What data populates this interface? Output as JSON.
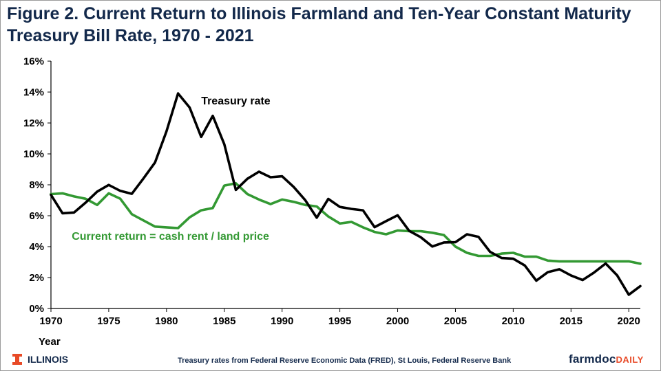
{
  "header": {
    "title_line1": "Figure 2.  Current Return to Illinois Farmland and Ten-Year Constant Maturity",
    "title_line2": "Treasury Bill Rate, 1970 - 2021"
  },
  "footer": {
    "logo_text": "ILLINOIS",
    "source_note": "Treasury rates from Federal Reserve Economic Data (FRED), St Louis, Federal Reserve Bank",
    "brand_main": "farmdoc",
    "brand_accent": "DAILY"
  },
  "colors": {
    "treasury": "#000000",
    "current_return": "#339933",
    "title": "#13294b",
    "brand_accent": "#e84a27"
  },
  "chart_data": {
    "type": "line",
    "xlabel": "Year",
    "ylabel": "",
    "xlim": [
      1970,
      2021
    ],
    "ylim": [
      0,
      16
    ],
    "x_ticks": [
      1970,
      1975,
      1980,
      1985,
      1990,
      1995,
      2000,
      2005,
      2010,
      2015,
      2020
    ],
    "x_tick_labels": [
      "1970",
      "1975",
      "1980",
      "1985",
      "1990",
      "1995",
      "2000",
      "2005",
      "2010",
      "2015",
      "2020"
    ],
    "y_ticks": [
      0,
      2,
      4,
      6,
      8,
      10,
      12,
      14,
      16
    ],
    "y_tick_labels": [
      "0%",
      "2%",
      "4%",
      "6%",
      "8%",
      "10%",
      "12%",
      "14%",
      "16%"
    ],
    "grid": false,
    "x": [
      1970,
      1971,
      1972,
      1973,
      1974,
      1975,
      1976,
      1977,
      1978,
      1979,
      1980,
      1981,
      1982,
      1983,
      1984,
      1985,
      1986,
      1987,
      1988,
      1989,
      1990,
      1991,
      1992,
      1993,
      1994,
      1995,
      1996,
      1997,
      1998,
      1999,
      2000,
      2001,
      2002,
      2003,
      2004,
      2005,
      2006,
      2007,
      2008,
      2009,
      2010,
      2011,
      2012,
      2013,
      2014,
      2015,
      2016,
      2017,
      2018,
      2019,
      2020,
      2021
    ],
    "series": [
      {
        "name": "Treasury rate",
        "values": [
          7.35,
          6.16,
          6.21,
          6.85,
          7.56,
          7.99,
          7.61,
          7.42,
          8.41,
          9.44,
          11.46,
          13.91,
          13.0,
          11.1,
          12.46,
          10.62,
          7.67,
          8.39,
          8.85,
          8.49,
          8.55,
          7.86,
          7.01,
          5.87,
          7.09,
          6.57,
          6.44,
          6.35,
          5.26,
          5.65,
          6.03,
          5.02,
          4.61,
          4.01,
          4.27,
          4.29,
          4.8,
          4.63,
          3.66,
          3.26,
          3.22,
          2.78,
          1.8,
          2.35,
          2.54,
          2.14,
          1.84,
          2.33,
          2.91,
          2.14,
          0.89,
          1.45
        ]
      },
      {
        "name": "Current return = cash rent / land price",
        "values": [
          7.4,
          7.45,
          7.25,
          7.1,
          6.7,
          7.45,
          7.1,
          6.1,
          5.7,
          5.3,
          5.25,
          5.2,
          5.9,
          6.35,
          6.5,
          7.95,
          8.1,
          7.4,
          7.05,
          6.75,
          7.05,
          6.9,
          6.7,
          6.6,
          5.95,
          5.5,
          5.6,
          5.25,
          4.95,
          4.8,
          5.05,
          5.0,
          5.0,
          4.9,
          4.75,
          4.0,
          3.6,
          3.4,
          3.4,
          3.55,
          3.6,
          3.35,
          3.35,
          3.1,
          3.05,
          3.05,
          3.05,
          3.05,
          3.05,
          3.05,
          3.05,
          2.9
        ]
      }
    ]
  }
}
